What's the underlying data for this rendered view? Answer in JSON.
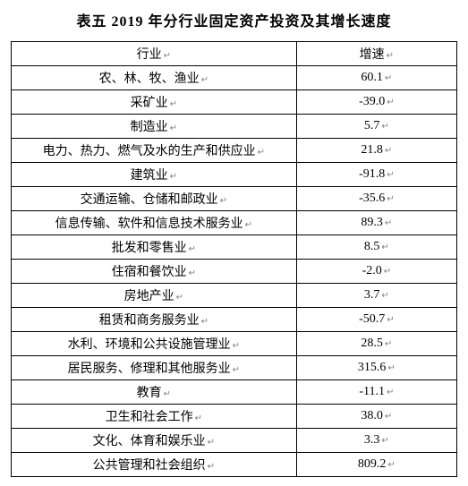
{
  "title": "表五 2019 年分行业固定资产投资及其增长速度",
  "header": {
    "industry": "行业",
    "rate": "增速"
  },
  "mark_glyph": "↵",
  "rows": [
    {
      "industry": "农、林、牧、渔业",
      "rate": "60.1"
    },
    {
      "industry": "采矿业",
      "rate": "-39.0"
    },
    {
      "industry": "制造业",
      "rate": "5.7"
    },
    {
      "industry": "电力、热力、燃气及水的生产和供应业",
      "rate": "21.8"
    },
    {
      "industry": "建筑业",
      "rate": "-91.8"
    },
    {
      "industry": "交通运输、仓储和邮政业",
      "rate": "-35.6"
    },
    {
      "industry": "信息传输、软件和信息技术服务业",
      "rate": "89.3"
    },
    {
      "industry": "批发和零售业",
      "rate": "8.5"
    },
    {
      "industry": "住宿和餐饮业",
      "rate": "-2.0"
    },
    {
      "industry": "房地产业",
      "rate": "3.7"
    },
    {
      "industry": "租赁和商务服务业",
      "rate": "-50.7"
    },
    {
      "industry": "水利、环境和公共设施管理业",
      "rate": "28.5"
    },
    {
      "industry": "居民服务、修理和其他服务业",
      "rate": "315.6"
    },
    {
      "industry": "教育",
      "rate": "-11.1"
    },
    {
      "industry": "卫生和社会工作",
      "rate": "38.0"
    },
    {
      "industry": "文化、体育和娱乐业",
      "rate": "3.3"
    },
    {
      "industry": "公共管理和社会组织",
      "rate": "809.2"
    }
  ]
}
